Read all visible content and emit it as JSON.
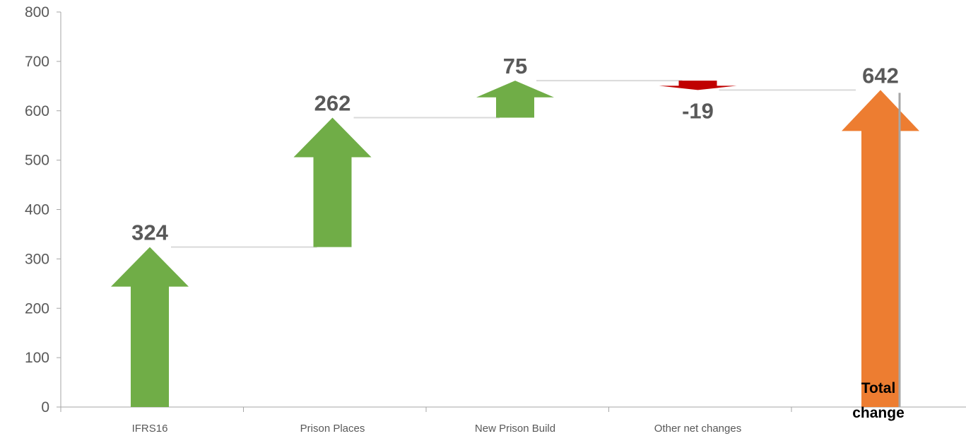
{
  "chart_data": {
    "type": "waterfall",
    "categories": [
      "IFRS16",
      "Prison Places",
      "New Prison Build",
      "Other net changes",
      ""
    ],
    "values": [
      324,
      262,
      75,
      -19,
      642
    ],
    "data_labels": [
      "324",
      "262",
      "75",
      "-19",
      "642"
    ],
    "total_label_lines": [
      "Total",
      "change"
    ],
    "ylim": [
      0,
      800
    ],
    "yticks": [
      "0",
      "100",
      "200",
      "300",
      "400",
      "500",
      "600",
      "700",
      "800"
    ],
    "grid": false,
    "legend": "none",
    "colors": {
      "increase": "#70ad47",
      "decrease": "#c00000",
      "total": "#ed7d31",
      "connector": "#d9d9d9",
      "axis": "#a6a6a6",
      "text": "#595959"
    }
  }
}
